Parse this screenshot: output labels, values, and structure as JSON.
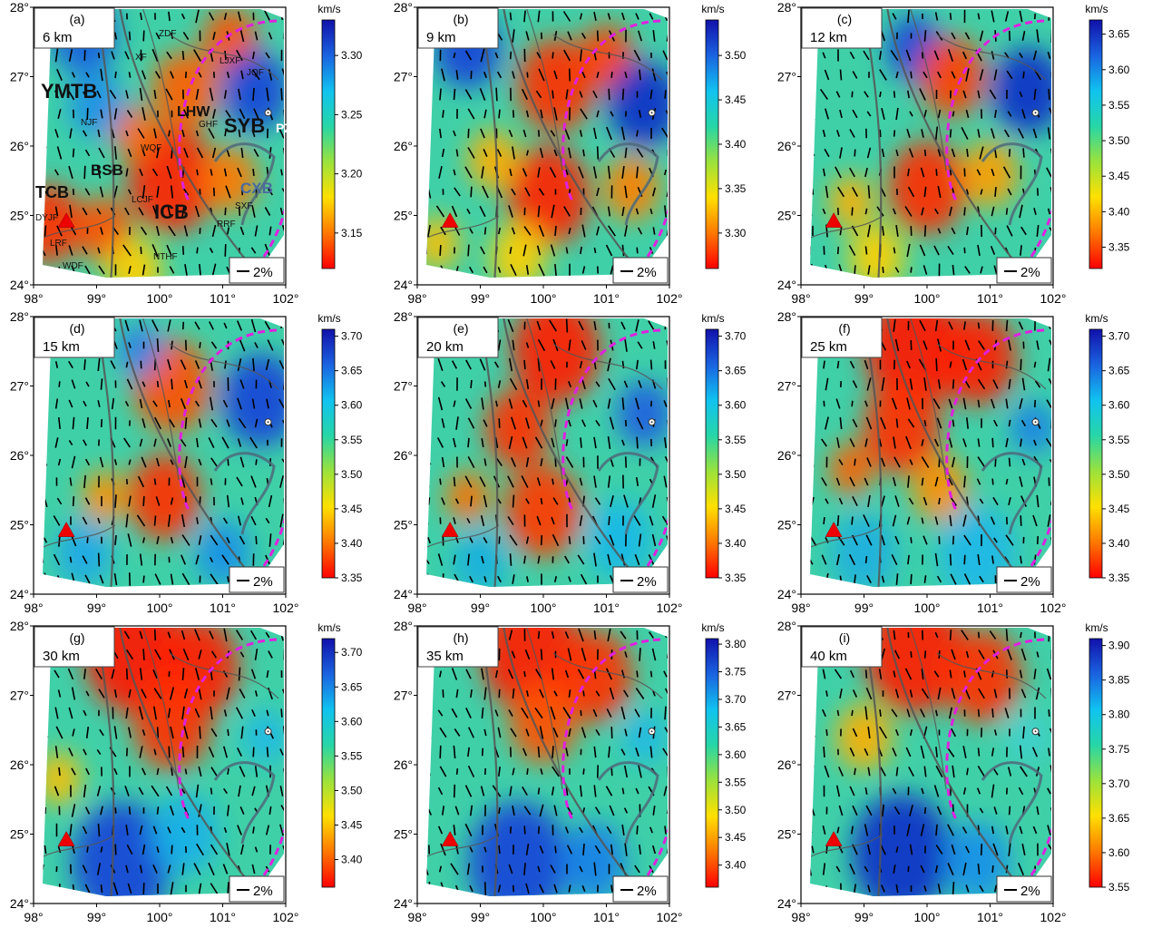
{
  "figure": {
    "description_labels": {
      "unit": "km/s",
      "scale_bar": "2%"
    },
    "x_ticks": [
      "98°",
      "99°",
      "100°",
      "101°",
      "102°"
    ],
    "y_ticks": [
      "24°",
      "25°",
      "26°",
      "27°",
      "28°"
    ],
    "annotations_panel_a": {
      "blocks": [
        "YMTB",
        "TCB",
        "BSB",
        "ICB",
        "SYB",
        "CXB",
        "LHW",
        "PZH"
      ],
      "faults": [
        "ZDF",
        "LJXF",
        "JQF",
        "NJF",
        "GHF",
        "WQF",
        "LCJF",
        "DYJF",
        "RRF",
        "LRF",
        "WDF",
        "NTHF",
        "SXF",
        "XF"
      ]
    }
  },
  "chart_data": [
    {
      "type": "heatmap",
      "panel": "(a)",
      "depth": "6 km",
      "unit": "km/s",
      "scale_bar": "2%",
      "cbar_ticks": [
        "3.15",
        "3.20",
        "3.25",
        "3.30"
      ],
      "cbar_range": [
        3.12,
        3.33
      ],
      "xlim": [
        98,
        102
      ],
      "ylim": [
        24,
        28
      ]
    },
    {
      "type": "heatmap",
      "panel": "(b)",
      "depth": "9 km",
      "unit": "km/s",
      "scale_bar": "2%",
      "cbar_ticks": [
        "3.30",
        "3.35",
        "3.40",
        "3.45",
        "3.50"
      ],
      "cbar_range": [
        3.26,
        3.54
      ],
      "xlim": [
        98,
        102
      ],
      "ylim": [
        24,
        28
      ]
    },
    {
      "type": "heatmap",
      "panel": "(c)",
      "depth": "12 km",
      "unit": "km/s",
      "scale_bar": "2%",
      "cbar_ticks": [
        "3.35",
        "3.40",
        "3.45",
        "3.50",
        "3.55",
        "3.60",
        "3.65"
      ],
      "cbar_range": [
        3.32,
        3.67
      ],
      "xlim": [
        98,
        102
      ],
      "ylim": [
        24,
        28
      ]
    },
    {
      "type": "heatmap",
      "panel": "(d)",
      "depth": "15 km",
      "unit": "km/s",
      "scale_bar": "2%",
      "cbar_ticks": [
        "3.35",
        "3.40",
        "3.45",
        "3.50",
        "3.55",
        "3.60",
        "3.65",
        "3.70"
      ],
      "cbar_range": [
        3.35,
        3.71
      ],
      "xlim": [
        98,
        102
      ],
      "ylim": [
        24,
        28
      ]
    },
    {
      "type": "heatmap",
      "panel": "(e)",
      "depth": "20 km",
      "unit": "km/s",
      "scale_bar": "2%",
      "cbar_ticks": [
        "3.35",
        "3.40",
        "3.45",
        "3.50",
        "3.55",
        "3.60",
        "3.65",
        "3.70"
      ],
      "cbar_range": [
        3.35,
        3.71
      ],
      "xlim": [
        98,
        102
      ],
      "ylim": [
        24,
        28
      ]
    },
    {
      "type": "heatmap",
      "panel": "(f)",
      "depth": "25 km",
      "unit": "km/s",
      "scale_bar": "2%",
      "cbar_ticks": [
        "3.35",
        "3.40",
        "3.45",
        "3.50",
        "3.55",
        "3.60",
        "3.65",
        "3.70"
      ],
      "cbar_range": [
        3.35,
        3.71
      ],
      "xlim": [
        98,
        102
      ],
      "ylim": [
        24,
        28
      ]
    },
    {
      "type": "heatmap",
      "panel": "(g)",
      "depth": "30 km",
      "unit": "km/s",
      "scale_bar": "2%",
      "cbar_ticks": [
        "3.40",
        "3.45",
        "3.50",
        "3.55",
        "3.60",
        "3.65",
        "3.70"
      ],
      "cbar_range": [
        3.36,
        3.72
      ],
      "xlim": [
        98,
        102
      ],
      "ylim": [
        24,
        28
      ]
    },
    {
      "type": "heatmap",
      "panel": "(h)",
      "depth": "35 km",
      "unit": "km/s",
      "scale_bar": "2%",
      "cbar_ticks": [
        "3.40",
        "3.45",
        "3.50",
        "3.55",
        "3.60",
        "3.65",
        "3.70",
        "3.75",
        "3.80"
      ],
      "cbar_range": [
        3.36,
        3.81
      ],
      "xlim": [
        98,
        102
      ],
      "ylim": [
        24,
        28
      ]
    },
    {
      "type": "heatmap",
      "panel": "(i)",
      "depth": "40 km",
      "unit": "km/s",
      "scale_bar": "2%",
      "cbar_ticks": [
        "3.55",
        "3.60",
        "3.65",
        "3.70",
        "3.75",
        "3.80",
        "3.85",
        "3.90"
      ],
      "cbar_range": [
        3.55,
        3.91
      ],
      "xlim": [
        98,
        102
      ],
      "ylim": [
        24,
        28
      ]
    }
  ]
}
